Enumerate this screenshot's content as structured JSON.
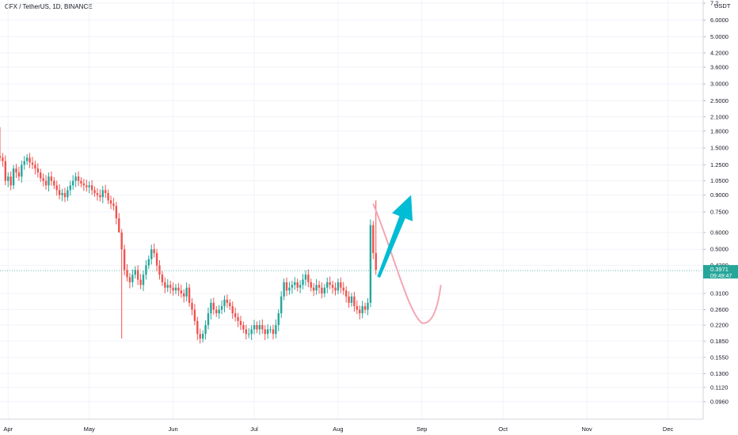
{
  "header": {
    "title": "CFX / TetherUS, 1D, BINANCE"
  },
  "colors": {
    "up": "#26a69a",
    "down": "#ef5350",
    "arrow": "#00bcd4",
    "curve": "#f4a6b4",
    "grid": "#f0f3fa",
    "price_line": "#26a69a"
  },
  "price_tag": {
    "price": "0.3971",
    "countdown": "09:49:47"
  },
  "chart_data": {
    "type": "candlestick",
    "symbol": "CFX / TetherUS",
    "interval": "1D",
    "exchange": "BINANCE",
    "y_unit": "USDT",
    "y_scale": "log",
    "ylim": [
      0.085,
      7.2
    ],
    "y_ticks": [
      "7.2",
      "6.0000",
      "5.0000",
      "4.2000",
      "3.6000",
      "3.0000",
      "2.5000",
      "2.1000",
      "1.8000",
      "1.5000",
      "1.2500",
      "1.0500",
      "0.9000",
      "0.7500",
      "0.6000",
      "0.5000",
      "0.4200",
      "0.3100",
      "0.2600",
      "0.2200",
      "0.1850",
      "0.1550",
      "0.1300",
      "0.1120",
      "0.0960"
    ],
    "x_ticks": [
      "Apr",
      "May",
      "Jun",
      "Jul",
      "Aug",
      "Sep",
      "Oct",
      "Nov",
      "Dec"
    ],
    "x_tick_days": [
      0,
      30,
      61,
      91,
      122,
      153,
      183,
      214,
      244
    ],
    "x_range_days": [
      -3,
      257
    ],
    "start_day": -3,
    "last_price": 0.3971,
    "closes": [
      1.35,
      1.3,
      1.05,
      1.1,
      1.0,
      1.2,
      1.15,
      1.1,
      1.25,
      1.3,
      1.35,
      1.28,
      1.25,
      1.2,
      1.15,
      1.08,
      1.05,
      1.0,
      1.1,
      1.05,
      1.0,
      0.95,
      0.9,
      0.92,
      0.88,
      0.95,
      1.0,
      1.05,
      1.1,
      1.05,
      1.02,
      1.0,
      0.98,
      1.0,
      0.95,
      0.92,
      0.9,
      0.88,
      0.95,
      0.92,
      0.85,
      0.82,
      0.8,
      0.7,
      0.6,
      0.5,
      0.4,
      0.37,
      0.35,
      0.38,
      0.4,
      0.36,
      0.34,
      0.38,
      0.42,
      0.45,
      0.5,
      0.48,
      0.42,
      0.38,
      0.35,
      0.33,
      0.34,
      0.33,
      0.32,
      0.33,
      0.32,
      0.31,
      0.3,
      0.33,
      0.28,
      0.26,
      0.23,
      0.2,
      0.19,
      0.2,
      0.22,
      0.25,
      0.28,
      0.26,
      0.25,
      0.26,
      0.27,
      0.29,
      0.28,
      0.27,
      0.25,
      0.24,
      0.23,
      0.22,
      0.21,
      0.2,
      0.2,
      0.21,
      0.22,
      0.21,
      0.22,
      0.21,
      0.2,
      0.21,
      0.21,
      0.2,
      0.22,
      0.25,
      0.3,
      0.35,
      0.32,
      0.33,
      0.34,
      0.35,
      0.33,
      0.34,
      0.36,
      0.38,
      0.35,
      0.33,
      0.32,
      0.34,
      0.33,
      0.31,
      0.33,
      0.35,
      0.34,
      0.33,
      0.32,
      0.35,
      0.33,
      0.32,
      0.3,
      0.28,
      0.3,
      0.27,
      0.26,
      0.25,
      0.27,
      0.26,
      0.28,
      0.65,
      0.48,
      0.4
    ],
    "annotations": [
      {
        "type": "arrow",
        "color": "#00bcd4"
      },
      {
        "type": "curve",
        "color": "#f4a6b4"
      }
    ]
  }
}
